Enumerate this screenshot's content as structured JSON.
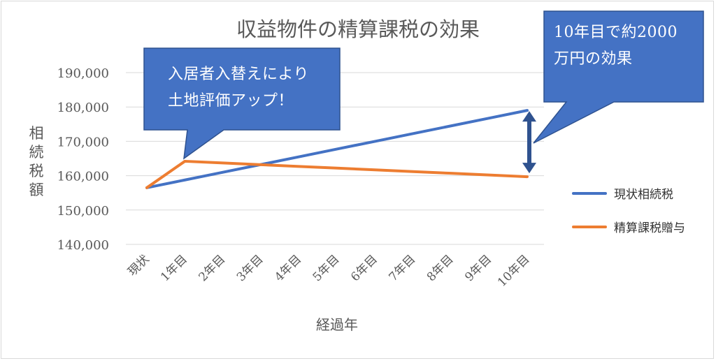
{
  "chart_data": {
    "type": "line",
    "title": "収益物件の精算課税の効果",
    "xlabel": "経過年",
    "ylabel": "相続税額",
    "categories": [
      "現状",
      "1年目",
      "2年目",
      "3年目",
      "4年目",
      "5年目",
      "6年目",
      "7年目",
      "8年目",
      "9年目",
      "10年目"
    ],
    "ylim": [
      140000,
      190000
    ],
    "yticks": [
      "140,000",
      "150,000",
      "160,000",
      "170,000",
      "180,000",
      "190,000"
    ],
    "grid": true,
    "legend_position": "right",
    "series": [
      {
        "name": "現状相続税",
        "color": "#4472c4",
        "values": [
          156500,
          158750,
          161000,
          163250,
          165500,
          167750,
          170000,
          172250,
          174500,
          176750,
          179000
        ]
      },
      {
        "name": "精算課税贈与",
        "color": "#ed7d31",
        "values": [
          156500,
          164200,
          163700,
          163200,
          162700,
          162200,
          161700,
          161200,
          160700,
          160200,
          159700
        ]
      }
    ],
    "annotations": {
      "left_callout": [
        "入居者入替えにより",
        "土地評価アップ！"
      ],
      "right_callout": [
        "10年目で約2000",
        "万円の効果"
      ]
    }
  },
  "colors": {
    "callout": "#4472c4",
    "callout_border": "#2f528f",
    "grid": "#d9d9d9",
    "text": "#595959"
  }
}
